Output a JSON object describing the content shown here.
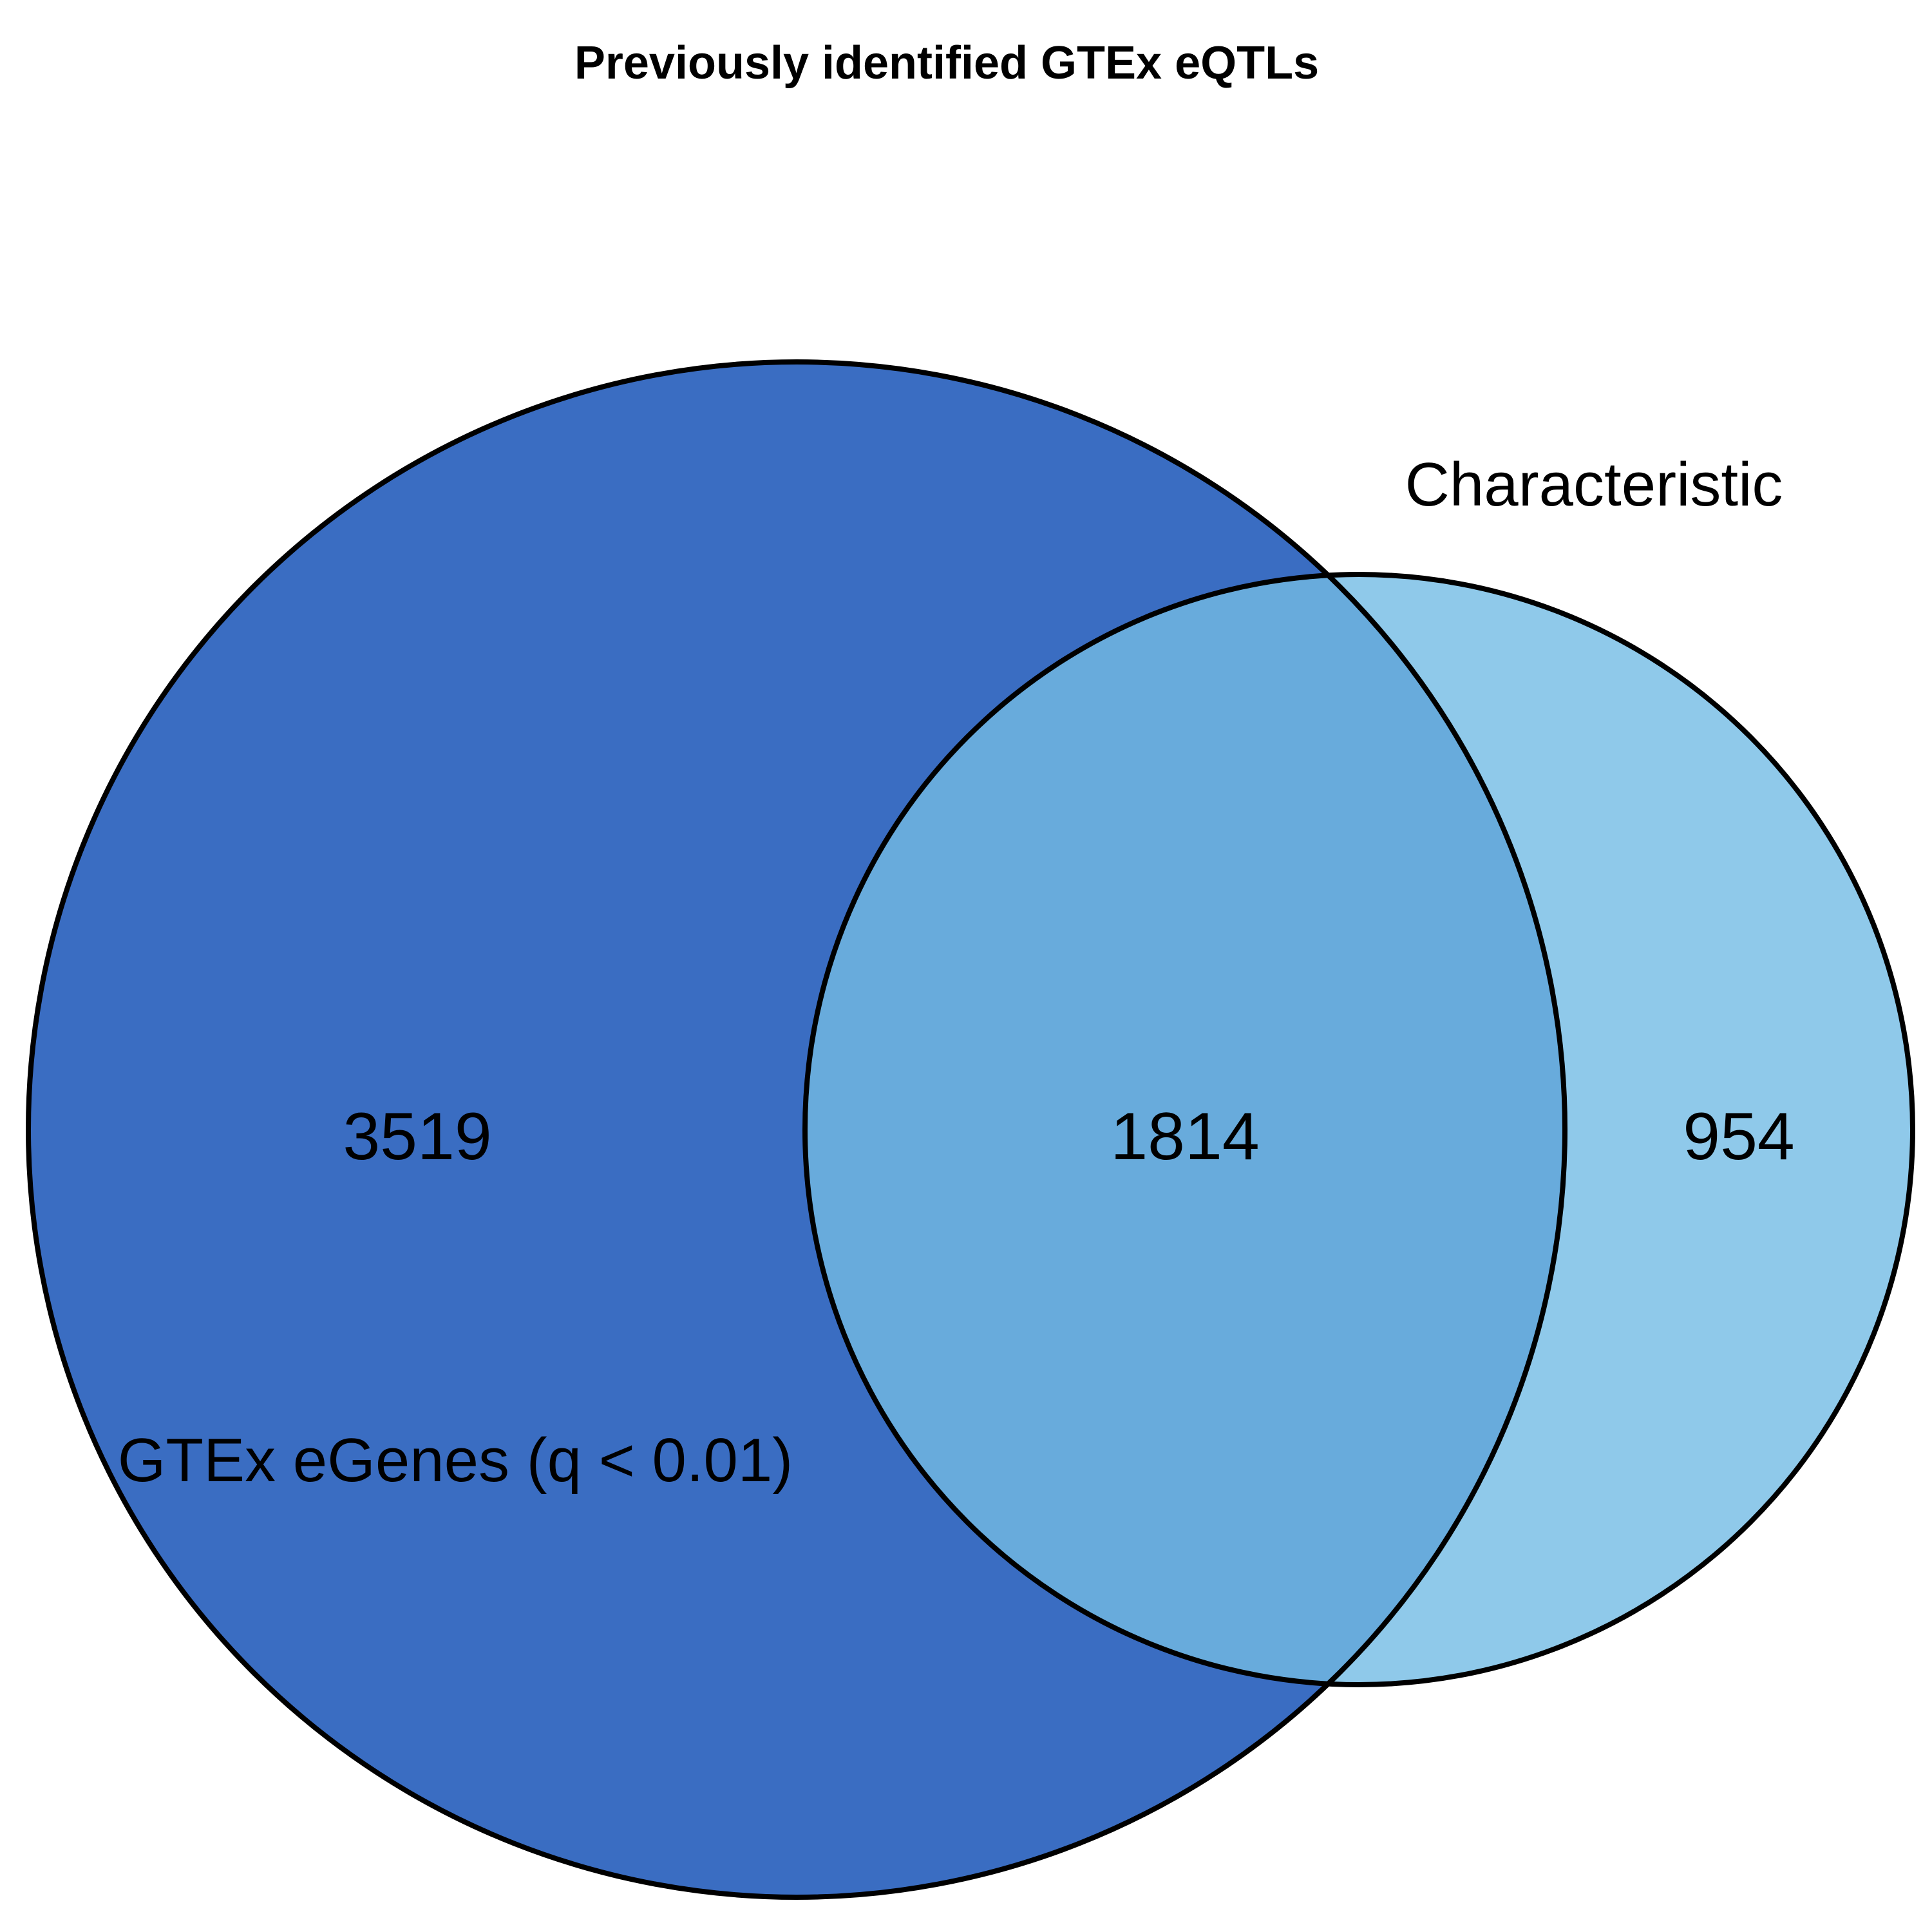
{
  "title": "Previously identified GTEx eQTLs",
  "sets": [
    {
      "name": "GTEx eGenes (q < 0.01)",
      "only_count": "3519",
      "color": "#3A6DC2"
    },
    {
      "name": "Characteristic",
      "only_count": "954",
      "color": "#8FC9EA"
    }
  ],
  "intersection": {
    "count": "1814",
    "color": "#68ABDC"
  },
  "outline_color": "#000000"
}
